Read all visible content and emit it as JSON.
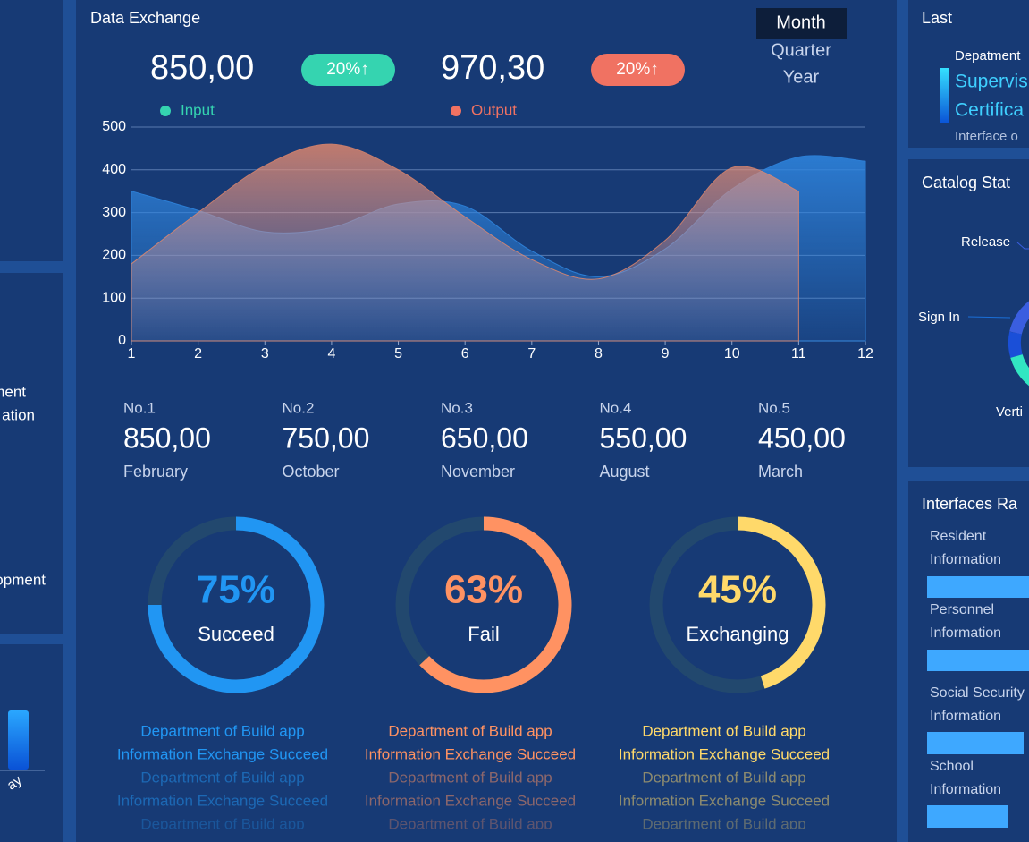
{
  "left_panel": {
    "labels": [
      "ment",
      "ation",
      "opment"
    ],
    "axis_label": "ay"
  },
  "center": {
    "title": "Data Exchange",
    "periods": [
      "Month",
      "Quarter",
      "Year"
    ],
    "stats": [
      {
        "value": "850,00",
        "badge": "20%↑",
        "legend": "Input",
        "color": "#35d4b0"
      },
      {
        "value": "970,30",
        "badge": "20%↑",
        "legend": "Output",
        "color": "#f07262"
      }
    ],
    "ranking": [
      {
        "rank": "No.1",
        "value": "850,00",
        "month": "February"
      },
      {
        "rank": "No.2",
        "value": "750,00",
        "month": "October"
      },
      {
        "rank": "No.3",
        "value": "650,00",
        "month": "November"
      },
      {
        "rank": "No.4",
        "value": "550,00",
        "month": "August"
      },
      {
        "rank": "No.5",
        "value": "450,00",
        "month": "March"
      }
    ],
    "gauges": [
      {
        "value": 75,
        "value_label": "75%",
        "label": "Succeed",
        "color": "#2196f3",
        "lines": [
          "Department of Build app",
          "Information Exchange Succeed",
          "Department of Build app",
          "Information Exchange Succeed",
          "Department of Build app"
        ]
      },
      {
        "value": 63,
        "value_label": "63%",
        "label": "Fail",
        "color": "#ff9262",
        "lines": [
          "Department of Build app",
          "Information Exchange Succeed",
          "Department of Build app",
          "Information Exchange Succeed",
          "Department of Build app"
        ]
      },
      {
        "value": 45,
        "value_label": "45%",
        "label": "Exchanging",
        "color": "#ffd96a",
        "lines": [
          "Department of Build app",
          "Information Exchange Succeed",
          "Department of Build app",
          "Information Exchange Succeed",
          "Department of Build app"
        ]
      }
    ]
  },
  "chart_data": {
    "type": "area",
    "x": [
      1,
      2,
      3,
      4,
      5,
      6,
      7,
      8,
      9,
      10,
      11,
      12
    ],
    "xlim": [
      1,
      12
    ],
    "xticks": [
      1,
      2,
      3,
      4,
      5,
      6,
      7,
      8,
      9,
      10,
      11,
      12
    ],
    "ylim": [
      0,
      500
    ],
    "yticks": [
      0,
      100,
      200,
      300,
      400,
      500
    ],
    "grid": true,
    "series": [
      {
        "name": "Input",
        "color": "#2f86e0",
        "values": [
          350,
          305,
          255,
          265,
          320,
          315,
          210,
          150,
          215,
          355,
          430,
          420
        ]
      },
      {
        "name": "Output",
        "color": "#e88a6c",
        "values": [
          180,
          300,
          410,
          460,
          400,
          290,
          190,
          145,
          235,
          405,
          350,
          null
        ]
      }
    ]
  },
  "right_panel": {
    "title": "Last",
    "dept_header": "Depatment",
    "dept_items": [
      "Supervis",
      "Certifica"
    ],
    "interface_note": "Interface o",
    "catalog_title": "Catalog Stat",
    "catalog_labels": [
      "Release",
      "Sign In",
      "Verti"
    ],
    "interfaces_title": "Interfaces Ra",
    "interfaces": [
      [
        "Resident",
        "Information"
      ],
      [
        "Personnel",
        "Information"
      ],
      [
        "Social Security",
        "Information"
      ],
      [
        "School",
        "Information"
      ]
    ]
  }
}
